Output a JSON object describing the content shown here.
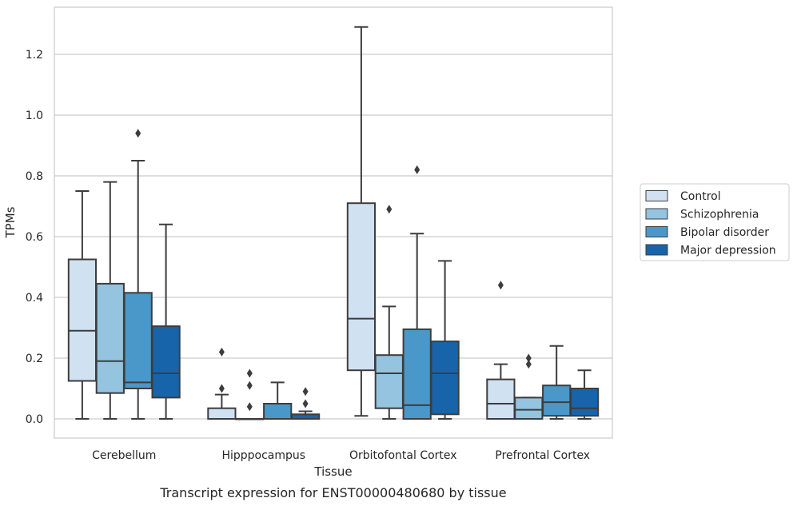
{
  "chart_data": {
    "type": "box",
    "caption": "Transcript expression for ENST00000480680 by tissue",
    "xlabel": "Tissue",
    "ylabel": "TPMs",
    "ylim": [
      -0.065,
      1.36
    ],
    "yticks": [
      "0.0",
      "0.2",
      "0.4",
      "0.6",
      "0.8",
      "1.0",
      "1.2"
    ],
    "ytick_values": [
      0,
      0.2,
      0.4,
      0.6,
      0.8,
      1.0,
      1.2
    ],
    "grid": true,
    "legend_position": "right",
    "categories": [
      "Cerebellum",
      "Hipppocampus",
      "Orbitofontal Cortex",
      "Prefrontal Cortex"
    ],
    "series": [
      {
        "name": "Control",
        "color": "#d0e1f2",
        "boxes": [
          {
            "whislo": 0.0,
            "q1": 0.125,
            "med": 0.29,
            "q3": 0.525,
            "whishi": 0.75,
            "fliers": []
          },
          {
            "whislo": 0.0,
            "q1": 0.0,
            "med": 0.0,
            "q3": 0.035,
            "whishi": 0.08,
            "fliers": [
              0.1,
              0.22
            ]
          },
          {
            "whislo": 0.01,
            "q1": 0.16,
            "med": 0.33,
            "q3": 0.71,
            "whishi": 1.29,
            "fliers": []
          },
          {
            "whislo": 0.0,
            "q1": 0.0,
            "med": 0.05,
            "q3": 0.13,
            "whishi": 0.18,
            "fliers": [
              0.44
            ]
          }
        ]
      },
      {
        "name": "Schizophrenia",
        "color": "#94c4df",
        "boxes": [
          {
            "whislo": 0.0,
            "q1": 0.085,
            "med": 0.19,
            "q3": 0.445,
            "whishi": 0.78,
            "fliers": []
          },
          {
            "whislo": 0.0,
            "q1": 0.0,
            "med": 0.0,
            "q3": 0.0,
            "whishi": 0.0,
            "fliers": [
              0.04,
              0.11,
              0.15
            ]
          },
          {
            "whislo": 0.0,
            "q1": 0.035,
            "med": 0.15,
            "q3": 0.21,
            "whishi": 0.37,
            "fliers": [
              0.69
            ]
          },
          {
            "whislo": 0.0,
            "q1": 0.0,
            "med": 0.03,
            "q3": 0.07,
            "whishi": 0.07,
            "fliers": [
              0.18,
              0.2
            ]
          }
        ]
      },
      {
        "name": "Bipolar disorder",
        "color": "#4a98c9",
        "boxes": [
          {
            "whislo": 0.0,
            "q1": 0.1,
            "med": 0.12,
            "q3": 0.415,
            "whishi": 0.85,
            "fliers": [
              0.94
            ]
          },
          {
            "whislo": 0.0,
            "q1": 0.0,
            "med": 0.0,
            "q3": 0.05,
            "whishi": 0.12,
            "fliers": []
          },
          {
            "whislo": 0.0,
            "q1": 0.0,
            "med": 0.045,
            "q3": 0.295,
            "whishi": 0.61,
            "fliers": [
              0.82
            ]
          },
          {
            "whislo": 0.0,
            "q1": 0.01,
            "med": 0.055,
            "q3": 0.11,
            "whishi": 0.24,
            "fliers": []
          }
        ]
      },
      {
        "name": "Major depression",
        "color": "#1764ab",
        "boxes": [
          {
            "whislo": 0.0,
            "q1": 0.07,
            "med": 0.15,
            "q3": 0.305,
            "whishi": 0.64,
            "fliers": []
          },
          {
            "whislo": 0.0,
            "q1": 0.0,
            "med": 0.0,
            "q3": 0.015,
            "whishi": 0.025,
            "fliers": [
              0.05,
              0.09
            ]
          },
          {
            "whislo": 0.0,
            "q1": 0.015,
            "med": 0.15,
            "q3": 0.255,
            "whishi": 0.52,
            "fliers": []
          },
          {
            "whislo": 0.0,
            "q1": 0.01,
            "med": 0.035,
            "q3": 0.1,
            "whishi": 0.16,
            "fliers": []
          }
        ]
      }
    ]
  }
}
